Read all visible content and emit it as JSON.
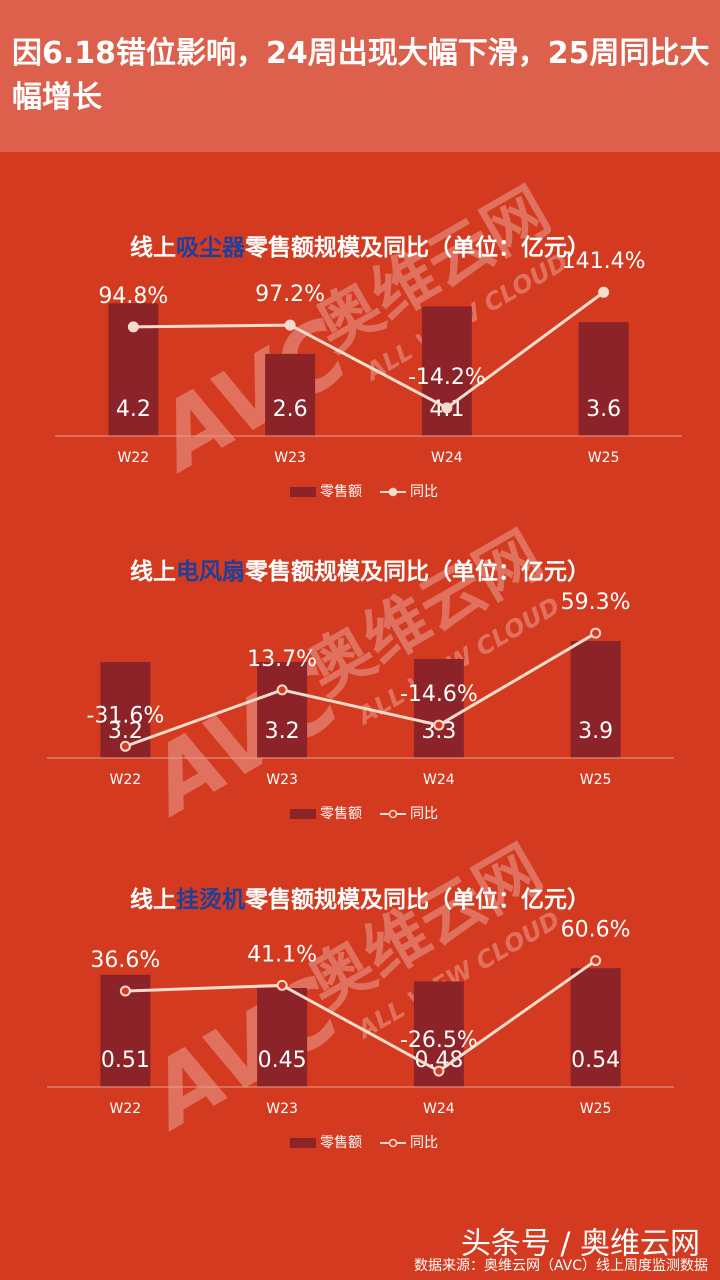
{
  "header": {
    "title": "因6.18错位影响，24周出现大幅下滑，25周同比大幅增长"
  },
  "watermark": {
    "logo": "AVC",
    "name": "奥维云网",
    "tagline": "ALL VIEW CLOUD"
  },
  "chart_data": [
    {
      "type": "combo",
      "title": [
        "线上",
        "吸尘器",
        "零售额规模及同比（单位：亿元）"
      ],
      "title_colors": [
        "#ffffff",
        "#1f3f9a",
        "#ffffff"
      ],
      "categories": [
        "W22",
        "W23",
        "W24",
        "W25"
      ],
      "series": [
        {
          "name": "零售额",
          "type": "bar",
          "color": "#8b2328",
          "values": [
            4.2,
            2.6,
            4.1,
            3.6
          ]
        },
        {
          "name": "同比",
          "type": "line",
          "axis": "y2",
          "color": "#f6dccd",
          "marker": "filled",
          "values": [
            94.8,
            97.2,
            -14.2,
            141.4
          ],
          "value_labels": [
            "94.8%",
            "97.2%",
            "-14.2%",
            "141.4%"
          ]
        }
      ],
      "ylim": [
        0,
        4.4
      ],
      "y2lim": [
        -52,
        135
      ]
    },
    {
      "type": "combo",
      "title": [
        "线上",
        "电风扇",
        "零售额规模及同比（单位：亿元）"
      ],
      "title_colors": [
        "#ffffff",
        "#1f3f9a",
        "#ffffff"
      ],
      "categories": [
        "W22",
        "W23",
        "W24",
        "W25"
      ],
      "series": [
        {
          "name": "零售额",
          "type": "bar",
          "color": "#8b2328",
          "values": [
            3.2,
            3.2,
            3.3,
            3.9
          ]
        },
        {
          "name": "同比",
          "type": "line",
          "axis": "y2",
          "color": "#f6dccd",
          "marker": "hollow",
          "values": [
            -31.6,
            13.7,
            -14.6,
            59.3
          ],
          "value_labels": [
            "-31.6%",
            "13.7%",
            "-14.6%",
            "59.3%"
          ]
        }
      ],
      "ylim": [
        0,
        3.9
      ],
      "y2lim": [
        -41,
        53
      ]
    },
    {
      "type": "combo",
      "title": [
        "线上",
        "挂烫机",
        "零售额规模及同比（单位：亿元）"
      ],
      "title_colors": [
        "#ffffff",
        "#1f3f9a",
        "#ffffff"
      ],
      "categories": [
        "W22",
        "W23",
        "W24",
        "W25"
      ],
      "series": [
        {
          "name": "零售额",
          "type": "bar",
          "color": "#8b2328",
          "values": [
            0.51,
            0.45,
            0.48,
            0.54
          ]
        },
        {
          "name": "同比",
          "type": "line",
          "axis": "y2",
          "color": "#f6dccd",
          "marker": "hollow",
          "values": [
            36.6,
            41.1,
            -26.5,
            60.6
          ],
          "value_labels": [
            "36.6%",
            "41.1%",
            "-26.5%",
            "60.6%"
          ]
        }
      ],
      "ylim": [
        0,
        0.6
      ],
      "y2lim": [
        -39,
        65
      ]
    }
  ],
  "footer": {
    "brand": "头条号 / 奥维云网",
    "source": "数据来源：奥维云网（AVC）线上周度监测数据"
  }
}
